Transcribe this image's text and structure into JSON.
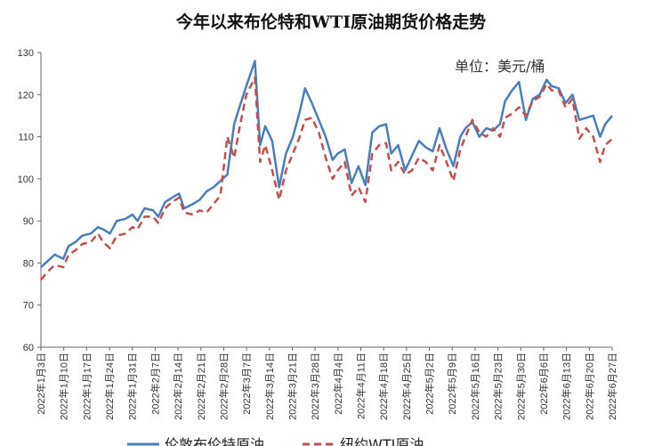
{
  "chart_data": {
    "type": "line",
    "title": "今年以来布伦特和WTI原油期货价格走势",
    "unit_label": "单位：美元/桶",
    "ylim": [
      60,
      130
    ],
    "yticks": [
      60,
      70,
      80,
      90,
      100,
      110,
      120,
      130
    ],
    "categories": [
      "2022年1月3日",
      "2022年1月10日",
      "2022年1月17日",
      "2022年1月24日",
      "2022年1月31日",
      "2022年2月7日",
      "2022年2月14日",
      "2022年2月21日",
      "2022年2月28日",
      "2022年3月7日",
      "2022年3月14日",
      "2022年3月21日",
      "2022年3月28日",
      "2022年4月4日",
      "2022年4月11日",
      "2022年4月18日",
      "2022年4月25日",
      "2022年5月2日",
      "2022年5月9日",
      "2022年5月16日",
      "2022年5月23日",
      "2022年5月30日",
      "2022年6月6日",
      "2022年6月13日",
      "2022年6月20日",
      "2022年6月27日"
    ],
    "series": [
      {
        "name": "伦敦布伦特原油",
        "color": "#4a7ebb",
        "style": "solid",
        "points": [
          [
            0,
            79
          ],
          [
            0.4,
            80.5
          ],
          [
            0.8,
            82
          ],
          [
            1.3,
            81
          ],
          [
            1.6,
            84
          ],
          [
            2,
            85
          ],
          [
            2.4,
            86.5
          ],
          [
            2.9,
            87
          ],
          [
            3.3,
            88.5
          ],
          [
            3.6,
            88
          ],
          [
            4,
            87
          ],
          [
            4.4,
            90
          ],
          [
            4.9,
            90.5
          ],
          [
            5.3,
            91.5
          ],
          [
            5.6,
            90
          ],
          [
            6,
            93
          ],
          [
            6.5,
            92.5
          ],
          [
            6.8,
            91
          ],
          [
            7.2,
            94.5
          ],
          [
            7.6,
            95.5
          ],
          [
            8,
            96.5
          ],
          [
            8.3,
            93
          ],
          [
            8.8,
            94
          ],
          [
            9.2,
            95
          ],
          [
            9.6,
            97
          ],
          [
            10,
            98
          ],
          [
            10.4,
            99.5
          ],
          [
            10.8,
            101
          ],
          [
            11.2,
            113
          ],
          [
            11.5,
            117
          ],
          [
            11.9,
            122
          ],
          [
            12.4,
            128
          ],
          [
            12.7,
            108
          ],
          [
            13,
            112.5
          ],
          [
            13.4,
            109
          ],
          [
            13.8,
            98
          ],
          [
            14.2,
            106
          ],
          [
            14.6,
            110
          ],
          [
            15,
            116
          ],
          [
            15.3,
            121.5
          ],
          [
            15.7,
            118
          ],
          [
            16.1,
            114
          ],
          [
            16.5,
            110
          ],
          [
            16.9,
            104.5
          ],
          [
            17.2,
            106
          ],
          [
            17.6,
            107
          ],
          [
            18,
            99
          ],
          [
            18.4,
            103
          ],
          [
            18.8,
            98.5
          ],
          [
            19.2,
            111
          ],
          [
            19.6,
            112.5
          ],
          [
            20,
            113
          ],
          [
            20.3,
            106
          ],
          [
            20.7,
            108
          ],
          [
            21.1,
            102
          ],
          [
            21.5,
            105.5
          ],
          [
            21.9,
            109
          ],
          [
            22.3,
            107.5
          ],
          [
            22.7,
            106.5
          ],
          [
            23.1,
            112
          ],
          [
            23.5,
            107
          ],
          [
            23.9,
            103
          ],
          [
            24.3,
            110
          ],
          [
            24.6,
            112
          ],
          [
            25,
            113.5
          ],
          [
            25.4,
            110
          ],
          [
            25.8,
            112
          ],
          [
            26.2,
            111.5
          ],
          [
            26.6,
            113
          ],
          [
            26.9,
            118.5
          ],
          [
            27.3,
            121
          ],
          [
            27.7,
            123
          ],
          [
            28.1,
            114
          ],
          [
            28.5,
            119
          ],
          [
            28.9,
            120
          ],
          [
            29.3,
            123.5
          ],
          [
            29.6,
            122
          ],
          [
            30,
            121.5
          ],
          [
            30.4,
            118
          ],
          [
            30.8,
            120
          ],
          [
            31.2,
            114
          ],
          [
            31.6,
            114.5
          ],
          [
            32,
            115
          ],
          [
            32.4,
            110
          ],
          [
            32.7,
            113
          ],
          [
            33.1,
            115
          ]
        ]
      },
      {
        "name": "纽约WTI原油",
        "color": "#c0504d",
        "style": "dashed",
        "points": [
          [
            0,
            76
          ],
          [
            0.4,
            78
          ],
          [
            0.8,
            79.5
          ],
          [
            1.3,
            79
          ],
          [
            1.6,
            82
          ],
          [
            2,
            83
          ],
          [
            2.4,
            84.5
          ],
          [
            2.9,
            85
          ],
          [
            3.3,
            87
          ],
          [
            3.6,
            85
          ],
          [
            4,
            83.5
          ],
          [
            4.4,
            86.5
          ],
          [
            4.9,
            87
          ],
          [
            5.3,
            88.5
          ],
          [
            5.6,
            88
          ],
          [
            6,
            91
          ],
          [
            6.5,
            91
          ],
          [
            6.8,
            89.5
          ],
          [
            7.2,
            93
          ],
          [
            7.6,
            94.5
          ],
          [
            8,
            95.5
          ],
          [
            8.3,
            92
          ],
          [
            8.8,
            91.5
          ],
          [
            9.2,
            92.5
          ],
          [
            9.6,
            92
          ],
          [
            10,
            94
          ],
          [
            10.4,
            96
          ],
          [
            10.8,
            110
          ],
          [
            11.2,
            105
          ],
          [
            11.5,
            112
          ],
          [
            11.9,
            120
          ],
          [
            12.4,
            124
          ],
          [
            12.7,
            104
          ],
          [
            13,
            108
          ],
          [
            13.4,
            102
          ],
          [
            13.8,
            95
          ],
          [
            14.2,
            102
          ],
          [
            14.6,
            106
          ],
          [
            15,
            110
          ],
          [
            15.3,
            114
          ],
          [
            15.7,
            114.5
          ],
          [
            16.1,
            111
          ],
          [
            16.5,
            105
          ],
          [
            16.9,
            100
          ],
          [
            17.2,
            102
          ],
          [
            17.6,
            104
          ],
          [
            18,
            96
          ],
          [
            18.4,
            98
          ],
          [
            18.8,
            94.5
          ],
          [
            19.2,
            106
          ],
          [
            19.6,
            108
          ],
          [
            20,
            108.5
          ],
          [
            20.3,
            102
          ],
          [
            20.7,
            104
          ],
          [
            21.1,
            101
          ],
          [
            21.5,
            102
          ],
          [
            21.9,
            105
          ],
          [
            22.3,
            104
          ],
          [
            22.7,
            102
          ],
          [
            23.1,
            108
          ],
          [
            23.5,
            104
          ],
          [
            23.9,
            99.5
          ],
          [
            24.3,
            107
          ],
          [
            24.6,
            110
          ],
          [
            25,
            114
          ],
          [
            25.4,
            111
          ],
          [
            25.8,
            110
          ],
          [
            26.2,
            112
          ],
          [
            26.6,
            110
          ],
          [
            26.9,
            114.5
          ],
          [
            27.3,
            115.5
          ],
          [
            27.7,
            117
          ],
          [
            28.1,
            115
          ],
          [
            28.5,
            118.5
          ],
          [
            28.9,
            119.5
          ],
          [
            29.3,
            122.5
          ],
          [
            29.6,
            121
          ],
          [
            30,
            121
          ],
          [
            30.4,
            117
          ],
          [
            30.8,
            119
          ],
          [
            31.2,
            109.5
          ],
          [
            31.6,
            112
          ],
          [
            32,
            110
          ],
          [
            32.4,
            104
          ],
          [
            32.7,
            108
          ],
          [
            33.1,
            109.5
          ]
        ]
      }
    ]
  }
}
